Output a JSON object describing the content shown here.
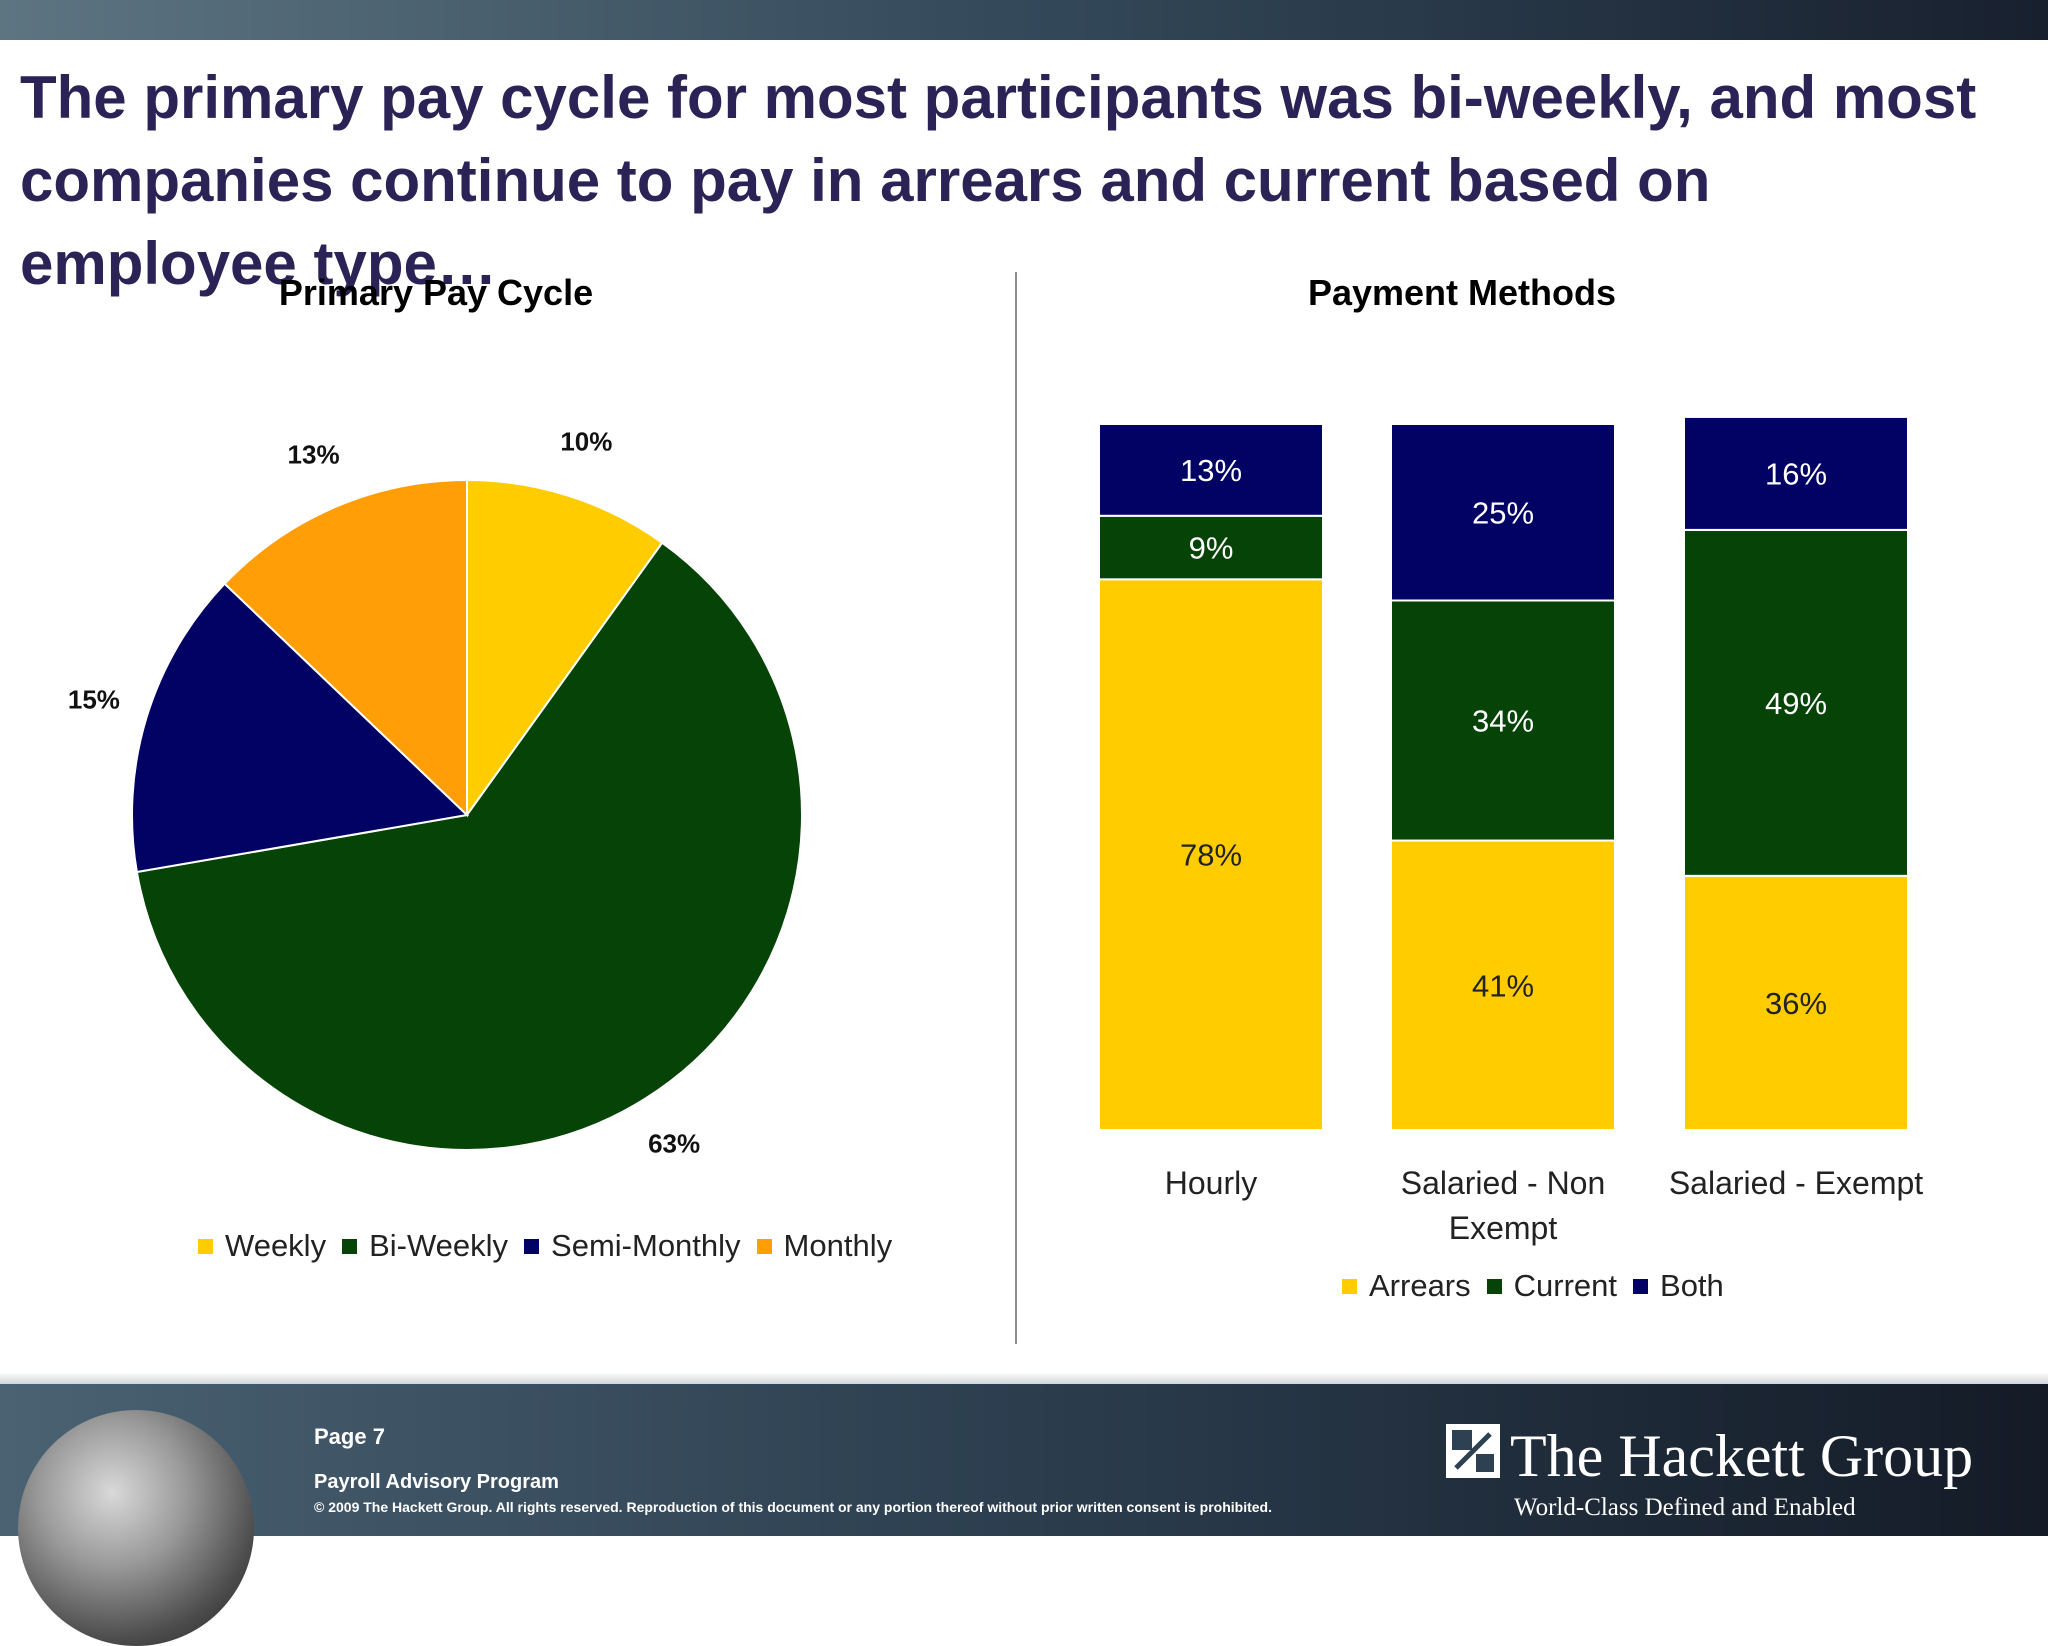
{
  "slide": {
    "title": "The primary pay cycle for most participants was bi-weekly, and most companies continue to pay in arrears and current based on employee type…"
  },
  "chart_data": [
    {
      "type": "pie",
      "title": "Primary Pay Cycle",
      "slices": [
        {
          "label": "Weekly",
          "value": 10,
          "display": "10%",
          "color": "#FFCC00"
        },
        {
          "label": "Bi-Weekly",
          "value": 63,
          "display": "63%",
          "color": "#064306"
        },
        {
          "label": "Semi-Monthly",
          "value": 15,
          "display": "15%",
          "color": "#020264"
        },
        {
          "label": "Monthly",
          "value": 13,
          "display": "13%",
          "color": "#FF9E06"
        }
      ],
      "legend": [
        "Weekly",
        "Bi-Weekly",
        "Semi-Monthly",
        "Monthly"
      ],
      "legend_position": "bottom"
    },
    {
      "type": "bar",
      "stacked": true,
      "title": "Payment Methods",
      "categories": [
        "Hourly",
        "Salaried - Non Exempt",
        "Salaried - Exempt"
      ],
      "category_lines": [
        [
          "Hourly"
        ],
        [
          "Salaried - Non",
          "Exempt"
        ],
        [
          "Salaried - Exempt"
        ]
      ],
      "series": [
        {
          "name": "Arrears",
          "values": [
            78,
            41,
            36
          ],
          "display": [
            "78%",
            "41%",
            "36%"
          ],
          "color": "#FFCC00"
        },
        {
          "name": "Current",
          "values": [
            9,
            34,
            49
          ],
          "display": [
            "9%",
            "34%",
            "49%"
          ],
          "color": "#064306"
        },
        {
          "name": "Both",
          "values": [
            13,
            25,
            16
          ],
          "display": [
            "13%",
            "25%",
            "16%"
          ],
          "color": "#020264"
        }
      ],
      "legend_position": "bottom"
    }
  ],
  "footer": {
    "page": "Page 7",
    "program": "Payroll Advisory Program",
    "copyright": "© 2009 The Hackett Group.  All rights reserved. Reproduction of this document or any portion thereof without prior written consent is prohibited.",
    "brand_name": "The Hackett Group",
    "brand_tagline": "World-Class Defined and Enabled"
  }
}
